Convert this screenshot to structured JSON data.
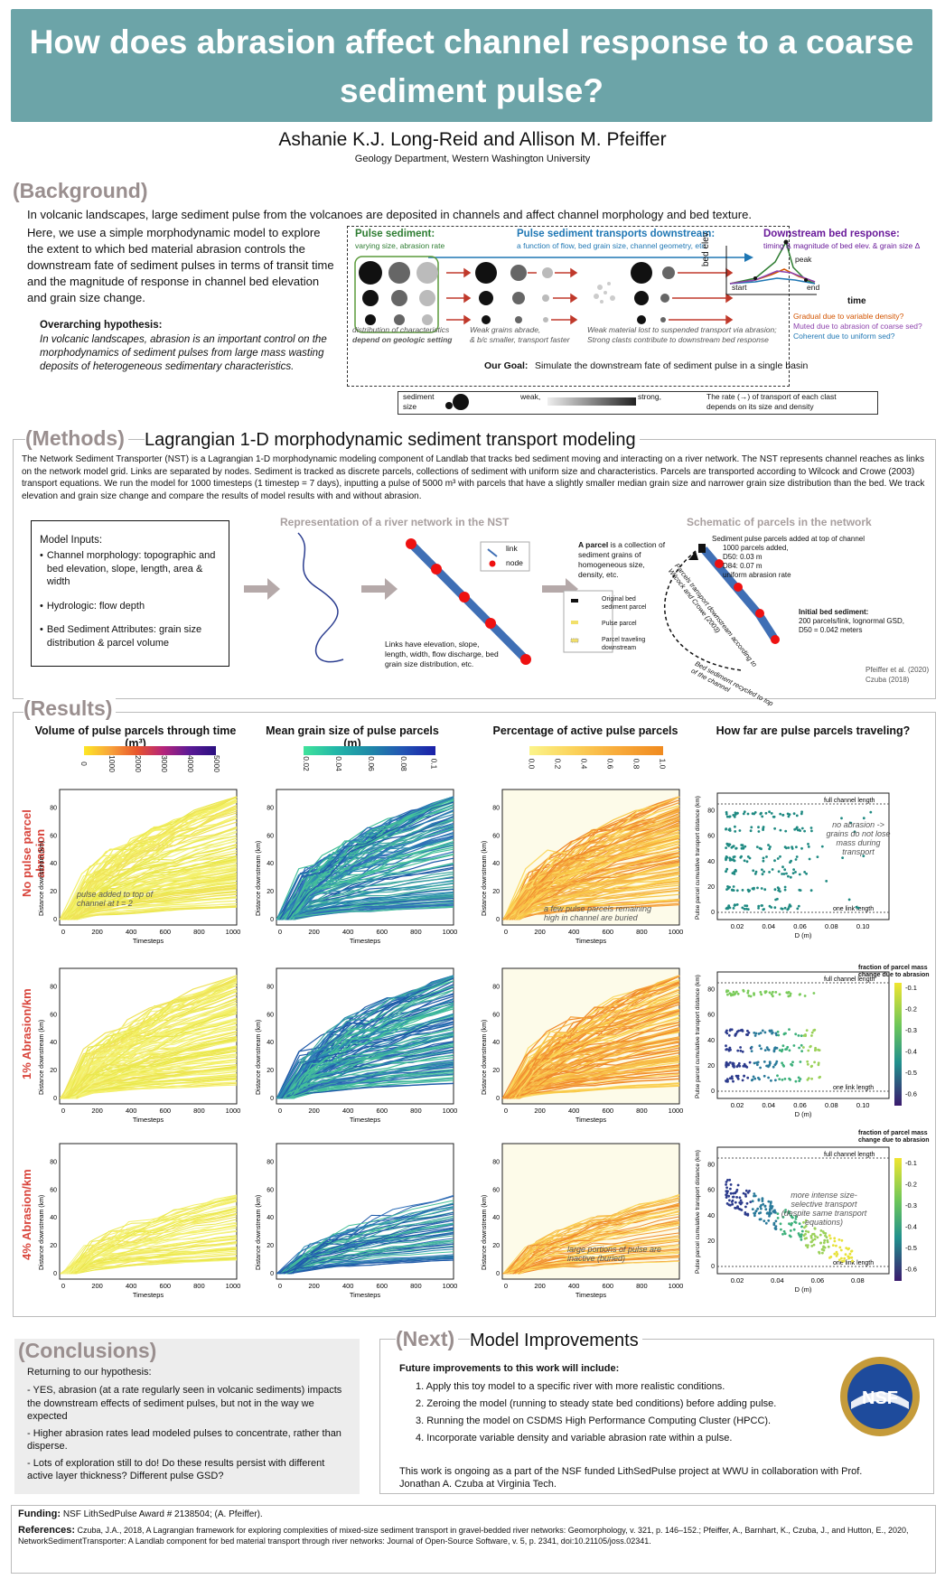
{
  "header": {
    "title": "How does abrasion affect channel response to a coarse sediment pulse?",
    "authors": "Ashanie K.J. Long-Reid and Allison M. Pfeiffer",
    "department": "Geology Department, Western Washington University"
  },
  "background": {
    "heading": "(Background)",
    "intro_line": "In volcanic landscapes, large sediment pulse from the volcanoes are deposited in channels and affect channel morphology and bed texture.",
    "body": "Here, we use a simple morphodynamic model to explore the extent to which bed material abrasion controls the downstream fate of sediment pulses in terms of transit time and the magnitude of response in channel bed elevation and grain size change.",
    "hypothesis_title": "Overarching hypothesis:",
    "hypothesis": "In volcanic  landscapes, abrasion is an important control on the morphodynamics of sediment pulses from large mass wasting deposits of heterogeneous sedimentary characteristics.",
    "schematic": {
      "pulse_title": "Pulse sediment:",
      "pulse_sub": "varying size, abrasion rate",
      "transport_title": "Pulse sediment transports downstream:",
      "transport_sub": "a function of flow, bed grain size, channel geometry, etc.",
      "bed_title": "Downstream bed response:",
      "bed_sub": "timing & magnitude of bed elev. & grain size Δ",
      "peak": "peak",
      "start": "start",
      "end": "end",
      "ylabel": "bed elev.",
      "xlabel": "time",
      "q1": "Gradual due to variable density?",
      "q2": "Muted due to abrasion of coarse sed?",
      "q3": "Coherent due to uniform sed?",
      "cap1a": "distribution of characteristics",
      "cap1b": "depend on geologic setting",
      "cap2a": "Weak grains abrade,",
      "cap2b": "& b/c smaller, transport faster",
      "cap3a": "Weak material lost to suspended transport via abrasion;",
      "cap3b": "Strong clasts contribute to downstream bed response",
      "goal_label": "Our Goal:",
      "goal": "Simulate the downstream fate of sediment pulse in a single basin",
      "legend_size1": "sediment",
      "legend_size2": "size",
      "legend_weak": "weak,",
      "legend_strong": "strong,",
      "legend_rate1": "The rate (→) of transport of each clast",
      "legend_rate2": "depends on its size and density"
    }
  },
  "methods": {
    "heading": "(Methods)",
    "subheading": "Lagrangian 1-D morphodynamic sediment transport modeling",
    "body": "The Network Sediment Transporter (NST) is a Lagrangian 1-D morphodynamic modeling component of Landlab that tracks bed sediment moving and interacting on a river network. The NST represents channel reaches as links on the network model grid. Links are separated by nodes. Sediment is tracked as discrete parcels, collections of sediment with uniform size and characteristics. Parcels are transported according to Wilcock and Crowe (2003) transport equations. We run the model for 1000 timesteps (1 timestep = 7 days), inputting a pulse of 5000 m³ with parcels that have a slightly smaller median grain size and narrower grain size distribution than the bed. We track elevation and grain size change and compare the results of model results with and without abrasion.",
    "inputs_title": "Model Inputs:",
    "inputs": [
      "Channel morphology: topographic and bed elevation, slope, length, area & width",
      "Hydrologic:  flow depth",
      "Bed Sediment Attributes: grain size distribution & parcel volume"
    ],
    "network_title": "Representation of a river network in the NST",
    "link_label": "link",
    "node_label": "node",
    "links_caption": "Links have elevation, slope, length, width, flow discharge, bed grain size distribution, etc.",
    "parcel_def_bold": "A parcel",
    "parcel_def": " is a collection of sediment grains of homogeneous size, density, etc.",
    "legend_original": "Original bed sediment parcel",
    "legend_pulse": "Pulse parcel",
    "legend_traveling": "Parcel traveling downstream",
    "schematic_title": "Schematic of parcels in the network",
    "pulse_added": "Sediment pulse parcels added at top of channel",
    "pulse_1000": "1000 parcels added,",
    "pulse_d50": "D50: 0.03 m",
    "pulse_d84": "D84: 0.07 m",
    "pulse_abr": "uniform abrasion rate",
    "transport_rot": "Parcels transport downstream according to Wilcock and Crowe (2003)",
    "initial_bed": "Initial bed sediment:",
    "initial_bed_1": "200 parcels/link, lognormal GSD,",
    "initial_bed_2": "D50 = 0.042 meters",
    "recycled": "Bed sediment recycled to top of the channel",
    "cite1": "Pfeiffer et al. (2020)",
    "cite2": "Czuba (2018)"
  },
  "results": {
    "heading": "(Results)",
    "columns": [
      "Volume of pulse parcels through time (m³)",
      "Mean grain size of pulse parcels  (m)",
      "Percentage of active pulse parcels",
      "How far are pulse parcels traveling?"
    ],
    "colorbar_vol_ticks": [
      "0",
      "1000",
      "2000",
      "3000",
      "4000",
      "5000"
    ],
    "colorbar_d_ticks": [
      "0.02",
      "0.04",
      "0.06",
      "0.08",
      "0.1"
    ],
    "colorbar_pct_ticks": [
      "0.0",
      "0.2",
      "0.4",
      "0.6",
      "0.8",
      "1.0"
    ],
    "row_labels": [
      "No pulse parcel abrasion",
      "1% Abrasion/km",
      "4% Abrasion/km"
    ],
    "x_label": "Timesteps",
    "y_label": "Distance downstream (km)",
    "x_ticks": [
      "0",
      "200",
      "400",
      "600",
      "800",
      "1000"
    ],
    "scatter_ylabel": "Pulse parcel cumulative transport distance (km)",
    "scatter_xlabel": "D (m)",
    "full_channel": "full channel length",
    "one_link": "one link length",
    "note_pulse_added": "pulse added to top of channel at t = 2",
    "note_buried": "a few pulse parcels remaining high in channel are buried",
    "note_no_abrasion": "no abrasion -> grains do not lose mass during transport",
    "note_inactive": "large portions of pulse are inactive (buried)",
    "note_selective": "more intense size-selective transport (despite same transport equations)",
    "frac_title_1": "fraction of parcel mass",
    "frac_title_2": "change due to abrasion",
    "frac_ticks": [
      "-0.1",
      "-0.2",
      "-0.3",
      "-0.4",
      "-0.5",
      "-0.6"
    ]
  },
  "conclusions": {
    "heading": "(Conclusions)",
    "intro": "Returning to our hypothesis:",
    "items": [
      "- YES, abrasion (at a rate regularly seen in volcanic sediments) impacts the downstream effects of sediment pulses, but not in the way we expected",
      "- Higher abrasion rates lead modeled pulses to concentrate, rather than disperse.",
      "- Lots of exploration still to do! Do these results persist with different active layer thickness? Different pulse GSD?"
    ]
  },
  "next": {
    "heading": "(Next)",
    "subheading": "Model Improvements",
    "intro": "Future improvements to this work will include:",
    "items": [
      "1. Apply this toy model to a specific river with more realistic conditions.",
      "2. Zeroing the model (running to steady state bed conditions) before adding pulse.",
      "3. Running the model on CSDMS High Performance Computing Cluster (HPCC).",
      "4. Incorporate variable density and variable abrasion rate within a pulse."
    ],
    "note": "This work is ongoing as a part of the NSF funded LithSedPulse project at WWU in collaboration with Prof. Jonathan A. Czuba at Virginia Tech.",
    "nsf_logo": "NSF"
  },
  "footer": {
    "funding_label": "Funding:",
    "funding": "NSF LithSedPulse Award # 2138504; (A. Pfeiffer).",
    "references_label": "References:",
    "references": "Czuba, J.A., 2018, A Lagrangian framework for exploring complexities of mixed-size sediment transport in gravel-bedded river networks: Geomorphology, v. 321, p. 146–152.; Pfeiffer, A., Barnhart, K., Czuba, J., and Hutton, E., 2020, NetworkSedimentTransporter: A Landlab component for bed material transport through river networks: Journal of Open-Source Software, v. 5, p. 2341, doi:10.21105/joss.02341."
  },
  "colors": {
    "title_band": "#6ca4a8",
    "section_paren": "#9a8f8f",
    "row_label": "#d9453c",
    "pulse_green": "#2e7d32",
    "transport_blue": "#1f77b4",
    "bed_purple": "#6a1b9a"
  }
}
